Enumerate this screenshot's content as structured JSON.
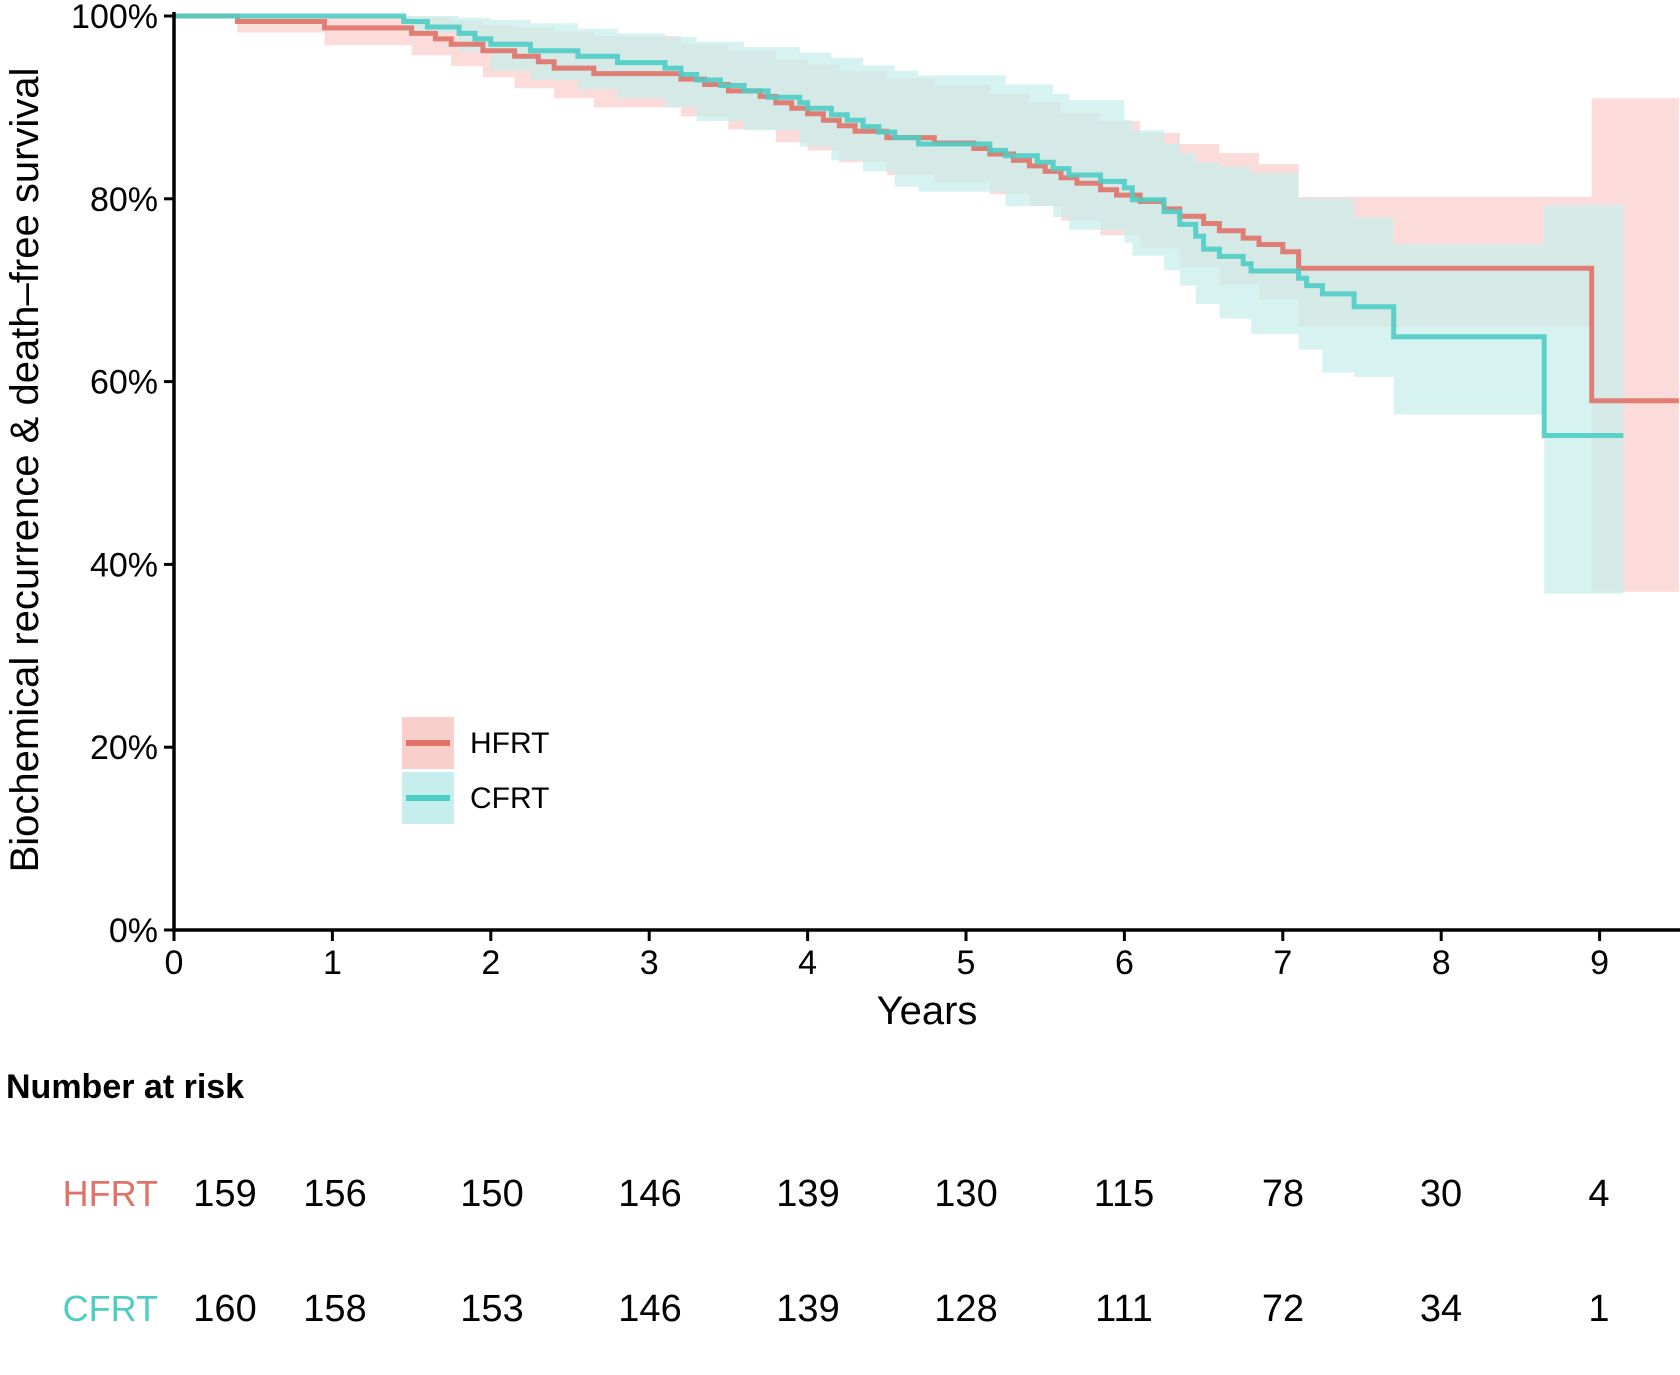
{
  "chart_data": {
    "type": "line",
    "title": "",
    "xlabel": "Years",
    "ylabel": "Biochemical recurrence & death–free survival",
    "xlim": [
      0,
      9.5
    ],
    "ylim": [
      0,
      100
    ],
    "x_ticks": [
      "0",
      "1",
      "2",
      "3",
      "4",
      "5",
      "6",
      "7",
      "8",
      "9"
    ],
    "y_ticks": [
      "0%",
      "20%",
      "40%",
      "60%",
      "80%",
      "100%"
    ],
    "legend_position": "lower-left",
    "step": true,
    "series": [
      {
        "name": "HFRT",
        "color": "#E07268",
        "band_color": "#F9CFCC",
        "points": [
          [
            0,
            100
          ],
          [
            0.4,
            99.4
          ],
          [
            0.95,
            98.7
          ],
          [
            1.5,
            98.1
          ],
          [
            1.65,
            97.5
          ],
          [
            1.75,
            96.9
          ],
          [
            1.95,
            96.2
          ],
          [
            2.15,
            95.6
          ],
          [
            2.3,
            95.0
          ],
          [
            2.4,
            94.3
          ],
          [
            2.65,
            93.7
          ],
          [
            3.2,
            93.1
          ],
          [
            3.35,
            92.5
          ],
          [
            3.5,
            91.8
          ],
          [
            3.7,
            91.2
          ],
          [
            3.8,
            90.5
          ],
          [
            3.9,
            89.9
          ],
          [
            4.0,
            89.3
          ],
          [
            4.1,
            88.6
          ],
          [
            4.2,
            88.0
          ],
          [
            4.3,
            87.4
          ],
          [
            4.5,
            86.7
          ],
          [
            4.8,
            86.1
          ],
          [
            5.05,
            85.5
          ],
          [
            5.15,
            84.9
          ],
          [
            5.3,
            84.2
          ],
          [
            5.4,
            83.6
          ],
          [
            5.5,
            83.0
          ],
          [
            5.6,
            82.3
          ],
          [
            5.7,
            81.7
          ],
          [
            5.85,
            81.0
          ],
          [
            5.95,
            80.4
          ],
          [
            6.1,
            79.7
          ],
          [
            6.25,
            78.9
          ],
          [
            6.35,
            78.1
          ],
          [
            6.5,
            77.3
          ],
          [
            6.6,
            76.5
          ],
          [
            6.75,
            75.7
          ],
          [
            6.85,
            75.0
          ],
          [
            7.0,
            74.2
          ],
          [
            7.1,
            72.4
          ],
          [
            8.95,
            57.9
          ],
          [
            9.5,
            57.9
          ]
        ],
        "ci_lower": [
          [
            0,
            100
          ],
          [
            0.4,
            98.2
          ],
          [
            0.95,
            96.8
          ],
          [
            1.5,
            95.7
          ],
          [
            1.75,
            94.5
          ],
          [
            1.95,
            93.3
          ],
          [
            2.15,
            92.1
          ],
          [
            2.4,
            91.0
          ],
          [
            2.65,
            90.0
          ],
          [
            3.2,
            89.0
          ],
          [
            3.5,
            87.6
          ],
          [
            3.8,
            86.2
          ],
          [
            4.0,
            85.3
          ],
          [
            4.2,
            84.0
          ],
          [
            4.5,
            82.6
          ],
          [
            4.8,
            81.8
          ],
          [
            5.15,
            80.5
          ],
          [
            5.4,
            79.2
          ],
          [
            5.6,
            77.6
          ],
          [
            5.85,
            76.0
          ],
          [
            6.1,
            74.6
          ],
          [
            6.35,
            72.5
          ],
          [
            6.6,
            70.6
          ],
          [
            6.85,
            69.0
          ],
          [
            7.1,
            66.0
          ],
          [
            8.95,
            37.0
          ],
          [
            9.5,
            37.0
          ]
        ],
        "ci_upper": [
          [
            0,
            100
          ],
          [
            0.4,
            100
          ],
          [
            0.95,
            100
          ],
          [
            1.5,
            99.9
          ],
          [
            1.75,
            99.5
          ],
          [
            1.95,
            99.0
          ],
          [
            2.15,
            98.8
          ],
          [
            2.4,
            98.3
          ],
          [
            2.65,
            97.8
          ],
          [
            3.2,
            96.9
          ],
          [
            3.5,
            96.2
          ],
          [
            3.8,
            95.3
          ],
          [
            4.0,
            94.7
          ],
          [
            4.2,
            94.0
          ],
          [
            4.5,
            93.2
          ],
          [
            4.8,
            92.5
          ],
          [
            5.15,
            91.5
          ],
          [
            5.4,
            90.6
          ],
          [
            5.6,
            89.4
          ],
          [
            5.85,
            88.5
          ],
          [
            6.1,
            87.2
          ],
          [
            6.35,
            86.0
          ],
          [
            6.6,
            85.0
          ],
          [
            6.85,
            83.8
          ],
          [
            7.1,
            80.2
          ],
          [
            8.95,
            91.0
          ],
          [
            9.5,
            91.0
          ]
        ]
      },
      {
        "name": "CFRT",
        "color": "#4ECDC4",
        "band_color": "#C6EEEC",
        "points": [
          [
            0,
            100
          ],
          [
            1.45,
            99.4
          ],
          [
            1.6,
            98.8
          ],
          [
            1.8,
            98.1
          ],
          [
            1.9,
            97.5
          ],
          [
            2.0,
            96.9
          ],
          [
            2.25,
            96.2
          ],
          [
            2.55,
            95.6
          ],
          [
            2.8,
            94.9
          ],
          [
            3.1,
            94.3
          ],
          [
            3.2,
            93.6
          ],
          [
            3.3,
            93.0
          ],
          [
            3.45,
            92.4
          ],
          [
            3.6,
            91.8
          ],
          [
            3.75,
            91.1
          ],
          [
            3.95,
            90.5
          ],
          [
            4.0,
            89.9
          ],
          [
            4.15,
            89.2
          ],
          [
            4.25,
            88.6
          ],
          [
            4.35,
            87.9
          ],
          [
            4.45,
            87.3
          ],
          [
            4.55,
            86.7
          ],
          [
            4.7,
            86.0
          ],
          [
            5.15,
            85.3
          ],
          [
            5.25,
            84.7
          ],
          [
            5.45,
            84.0
          ],
          [
            5.55,
            83.3
          ],
          [
            5.65,
            82.6
          ],
          [
            5.85,
            81.9
          ],
          [
            6.0,
            81.2
          ],
          [
            6.05,
            79.9
          ],
          [
            6.25,
            78.6
          ],
          [
            6.35,
            77.2
          ],
          [
            6.45,
            75.9
          ],
          [
            6.5,
            74.5
          ],
          [
            6.6,
            73.7
          ],
          [
            6.75,
            72.9
          ],
          [
            6.8,
            72.1
          ],
          [
            7.1,
            71.3
          ],
          [
            7.15,
            70.5
          ],
          [
            7.25,
            69.6
          ],
          [
            7.45,
            68.2
          ],
          [
            7.7,
            64.9
          ],
          [
            8.65,
            54.1
          ],
          [
            9.15,
            54.1
          ]
        ],
        "ci_lower": [
          [
            0,
            100
          ],
          [
            1.45,
            98.2
          ],
          [
            1.8,
            96.2
          ],
          [
            2.0,
            94.0
          ],
          [
            2.25,
            93.0
          ],
          [
            2.55,
            92.0
          ],
          [
            2.8,
            91.0
          ],
          [
            3.1,
            90.0
          ],
          [
            3.3,
            88.5
          ],
          [
            3.6,
            87.5
          ],
          [
            3.95,
            85.7
          ],
          [
            4.15,
            84.2
          ],
          [
            4.35,
            83.0
          ],
          [
            4.55,
            81.3
          ],
          [
            4.7,
            80.8
          ],
          [
            5.25,
            79.2
          ],
          [
            5.55,
            78.0
          ],
          [
            5.65,
            76.6
          ],
          [
            6.0,
            75.2
          ],
          [
            6.05,
            73.8
          ],
          [
            6.25,
            72.2
          ],
          [
            6.35,
            70.5
          ],
          [
            6.45,
            68.5
          ],
          [
            6.6,
            66.9
          ],
          [
            6.8,
            65.2
          ],
          [
            7.1,
            63.5
          ],
          [
            7.25,
            61.0
          ],
          [
            7.45,
            60.5
          ],
          [
            7.7,
            56.4
          ],
          [
            8.65,
            36.8
          ],
          [
            9.15,
            36.8
          ]
        ],
        "ci_upper": [
          [
            0,
            100
          ],
          [
            1.45,
            100
          ],
          [
            1.8,
            99.8
          ],
          [
            2.0,
            99.6
          ],
          [
            2.25,
            99.2
          ],
          [
            2.55,
            98.6
          ],
          [
            2.8,
            98.1
          ],
          [
            3.1,
            97.7
          ],
          [
            3.3,
            97.2
          ],
          [
            3.6,
            96.6
          ],
          [
            3.95,
            96.0
          ],
          [
            4.15,
            95.4
          ],
          [
            4.35,
            94.6
          ],
          [
            4.55,
            94.0
          ],
          [
            4.7,
            93.5
          ],
          [
            5.25,
            92.5
          ],
          [
            5.55,
            91.5
          ],
          [
            5.65,
            90.8
          ],
          [
            6.0,
            88.6
          ],
          [
            6.05,
            87.5
          ],
          [
            6.25,
            86.0
          ],
          [
            6.35,
            85.0
          ],
          [
            6.45,
            84.0
          ],
          [
            6.6,
            83.5
          ],
          [
            6.8,
            82.8
          ],
          [
            7.1,
            80.0
          ],
          [
            7.45,
            78.0
          ],
          [
            7.7,
            75.0
          ],
          [
            8.65,
            79.3
          ],
          [
            9.15,
            79.3
          ]
        ]
      }
    ]
  },
  "risk_table": {
    "title": "Number at risk",
    "rows": [
      {
        "group": "HFRT",
        "color": "#E07268",
        "values": [
          "159",
          "156",
          "150",
          "146",
          "139",
          "130",
          "115",
          "78",
          "30",
          "4"
        ]
      },
      {
        "group": "CFRT",
        "color": "#4ECDC4",
        "values": [
          "160",
          "158",
          "153",
          "146",
          "139",
          "128",
          "111",
          "72",
          "34",
          "1"
        ]
      }
    ]
  }
}
